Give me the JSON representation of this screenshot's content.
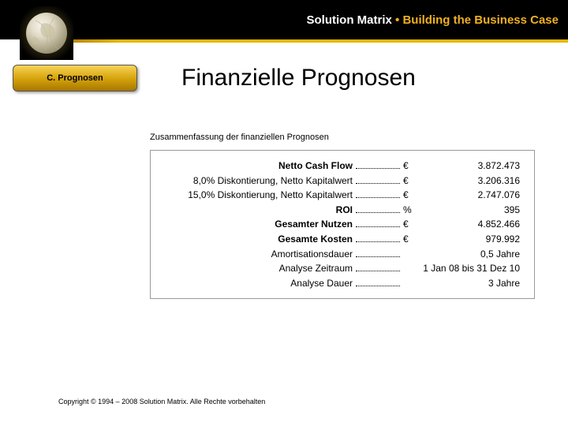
{
  "header": {
    "brand": "Solution Matrix",
    "separator": " • ",
    "tagline": "Building the Business Case"
  },
  "tab": {
    "label": "C. Prognosen"
  },
  "page": {
    "title": "Finanzielle Prognosen",
    "subtitle": "Zusammenfassung der finanziellen Prognosen"
  },
  "rows": [
    {
      "label": "Netto Cash Flow",
      "bold": true,
      "unit": "€",
      "value": "3.872.473"
    },
    {
      "label": "8,0%  Diskontierung, Netto Kapitalwert",
      "bold": false,
      "unit": "€",
      "value": "3.206.316"
    },
    {
      "label": "15,0%  Diskontierung, Netto Kapitalwert",
      "bold": false,
      "unit": "€",
      "value": "2.747.076"
    },
    {
      "label": "ROI",
      "bold": true,
      "unit": "%",
      "value": "395"
    },
    {
      "label": "Gesamter Nutzen",
      "bold": true,
      "unit": "€",
      "value": "4.852.466"
    },
    {
      "label": "Gesamte Kosten",
      "bold": true,
      "unit": "€",
      "value": "979.992"
    },
    {
      "label": "Amortisationsdauer",
      "bold": false,
      "unit": "",
      "value": "0,5 Jahre"
    },
    {
      "label": "Analyse Zeitraum",
      "bold": false,
      "unit": "",
      "value": "1 Jan 08 bis 31 Dez 10"
    },
    {
      "label": "Analyse Dauer",
      "bold": false,
      "unit": "",
      "value": "3 Jahre"
    }
  ],
  "footer": {
    "text": "Copyright © 1994 – 2008 Solution Matrix. Alle Rechte vorbehalten"
  },
  "style": {
    "accent": "#f0b020",
    "gold_start": "#b88a00",
    "gold_end": "#e5b800",
    "background": "#ffffff",
    "border": "#999999"
  }
}
